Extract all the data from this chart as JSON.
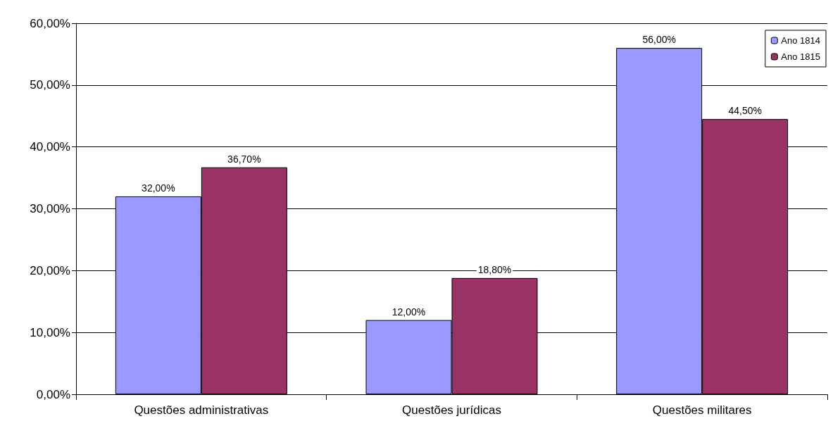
{
  "chart_data": {
    "type": "bar",
    "categories": [
      "Questões administrativas",
      "Questões jurídicas",
      "Questões militares"
    ],
    "series": [
      {
        "name": "Ano 1814",
        "color": "#9999ff",
        "values": [
          32,
          12,
          56
        ],
        "value_labels": [
          "32,00%",
          "12,00%",
          "56,00%"
        ]
      },
      {
        "name": "Ano 1815",
        "color": "#993366",
        "values": [
          36.7,
          18.8,
          44.5
        ],
        "value_labels": [
          "36,70%",
          "18,80%",
          "44,50%"
        ]
      }
    ],
    "ylim": [
      0,
      60
    ],
    "yticks": [
      {
        "value": 0,
        "label": "0,00%"
      },
      {
        "value": 10,
        "label": "10,00%"
      },
      {
        "value": 20,
        "label": "20,00%"
      },
      {
        "value": 30,
        "label": "30,00%"
      },
      {
        "value": 40,
        "label": "40,00%"
      },
      {
        "value": 50,
        "label": "50,00%"
      },
      {
        "value": 60,
        "label": "60,00%"
      }
    ],
    "grid": "y",
    "legend": "top right"
  }
}
